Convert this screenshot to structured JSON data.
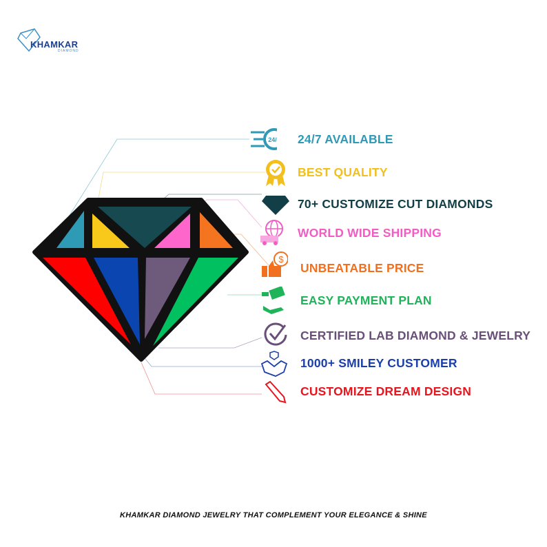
{
  "logo": {
    "name": "KHAMKAR",
    "sub": "DIAMOND"
  },
  "features": [
    {
      "label": "24/7 AVAILABLE",
      "color": "#2e9ab5",
      "icon": "clock-24-7-icon",
      "badge": "24/7"
    },
    {
      "label": "BEST QUALITY",
      "color": "#f2c01e",
      "icon": "quality-badge-icon"
    },
    {
      "label": "70+ CUSTOMIZE CUT DIAMONDS",
      "color": "#123f47",
      "icon": "diamond-icon"
    },
    {
      "label": "WORLD WIDE SHIPPING",
      "color": "#f25cc4",
      "icon": "globe-truck-icon"
    },
    {
      "label": "UNBEATABLE PRICE",
      "color": "#f07020",
      "icon": "thumbs-up-dollar-icon"
    },
    {
      "label": "EASY PAYMENT PLAN",
      "color": "#1fb35a",
      "icon": "money-hand-icon"
    },
    {
      "label": "CERTIFIED LAB DIAMOND & JEWELRY",
      "color": "#6a5079",
      "icon": "check-circle-icon"
    },
    {
      "label": "1000+ SMILEY CUSTOMER",
      "color": "#1a3faa",
      "icon": "handshake-icon"
    },
    {
      "label": "CUSTOMIZE DREAM DESIGN",
      "color": "#e8141e",
      "icon": "pencil-icon"
    }
  ],
  "tagline": "KHAMKAR DIAMOND JEWELRY THAT COMPLEMENT YOUR ELEGANCE & SHINE"
}
